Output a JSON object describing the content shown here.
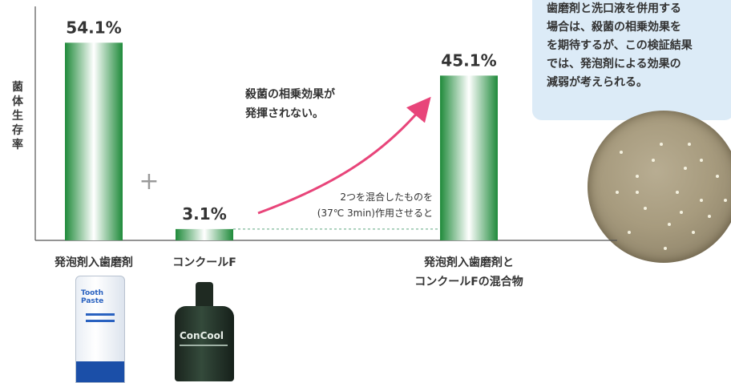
{
  "chart_data": {
    "type": "bar",
    "ylabel": "菌体生存率",
    "categories": [
      "発泡剤入歯磨剤",
      "コンクールF",
      "発泡剤入歯磨剤と\nコンクールFの混合物"
    ],
    "values": [
      54.1,
      3.1,
      45.1
    ],
    "value_labels": [
      "54.1%",
      "3.1%",
      "45.1%"
    ],
    "ylim": [
      0,
      60
    ],
    "grid": false,
    "legend": "none",
    "annotations": {
      "plus": "+",
      "synergy": [
        "殺菌の相乗効果が",
        "発揮されない。"
      ],
      "mix": [
        "2つを混合したものを",
        "(37℃ 3min)作用させると"
      ]
    },
    "colors": {
      "bar_dark": "#1f8a3a",
      "bar_light": "#ffffff",
      "arrow": "#e8457a",
      "axis": "#555555"
    }
  },
  "note": {
    "lines": [
      "歯磨剤と洗口液を併用する",
      "場合は、殺菌の相乗効果を",
      "を期待するが、この検証結果",
      "では、発泡剤による効果の",
      "減弱が考えられる。"
    ]
  },
  "products": {
    "tube": [
      "Tooth",
      "Paste"
    ],
    "bottle": "ConCool"
  }
}
